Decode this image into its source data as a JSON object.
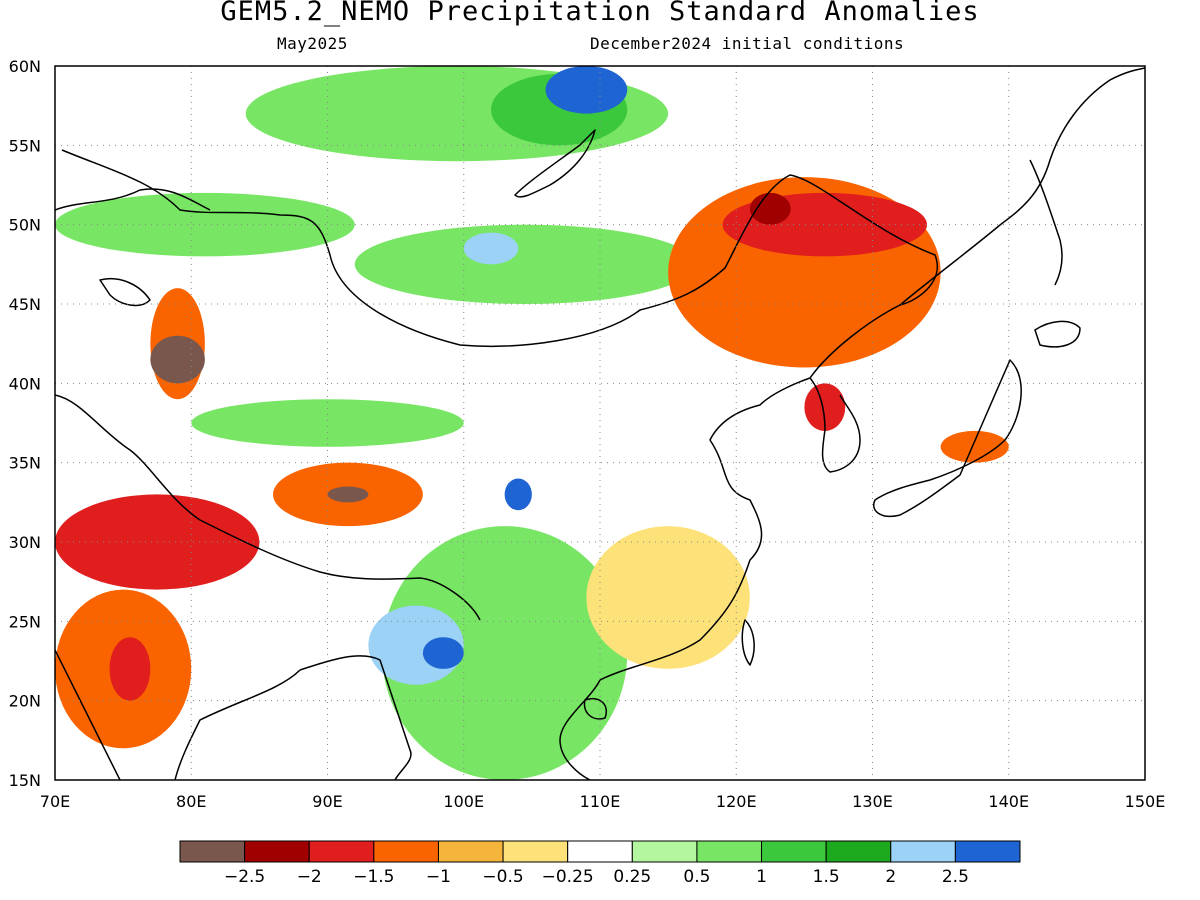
{
  "header": {
    "title": "GEM5.2_NEMO Precipitation Standard Anomalies",
    "left_subtitle": "May2025",
    "right_subtitle": "December2024 initial conditions"
  },
  "axes": {
    "lon_ticks": [
      "70E",
      "80E",
      "90E",
      "100E",
      "110E",
      "120E",
      "130E",
      "140E",
      "150E"
    ],
    "lat_ticks": [
      "15N",
      "20N",
      "25N",
      "30N",
      "35N",
      "40N",
      "45N",
      "50N",
      "55N",
      "60N"
    ],
    "lon_range": [
      70,
      150
    ],
    "lat_range": [
      15,
      60
    ],
    "grid": "dotted"
  },
  "colorbar": {
    "colors": [
      "#7a574d",
      "#a00000",
      "#e01e1e",
      "#fa6400",
      "#f5b53c",
      "#fde27a",
      "#ffffff",
      "#b4f5a0",
      "#78e664",
      "#3cc83c",
      "#1eaa1e",
      "#9bd2f5",
      "#1e64d2"
    ],
    "labels": [
      "-2.5",
      "-2",
      "-1.5",
      "-1",
      "-0.5",
      "-0.25",
      "0.25",
      "0.5",
      "1",
      "1.5",
      "2",
      "2.5"
    ]
  },
  "regions": [
    {
      "name": "siberia-wet-north",
      "level": 2,
      "lon": [
        84,
        115
      ],
      "lat": [
        54,
        60
      ]
    },
    {
      "name": "baikal-wet",
      "level": 3,
      "lon": [
        102,
        112
      ],
      "lat": [
        55,
        59.5
      ]
    },
    {
      "name": "far-north-blue",
      "level": 6,
      "lon": [
        106,
        112
      ],
      "lat": [
        57,
        60
      ]
    },
    {
      "name": "kazakh-wet",
      "level": 2,
      "lon": [
        70,
        92
      ],
      "lat": [
        48,
        52
      ]
    },
    {
      "name": "mongolia-wet",
      "level": 2,
      "lon": [
        92,
        117
      ],
      "lat": [
        45,
        50
      ]
    },
    {
      "name": "mongolia-blue",
      "level": 5,
      "lon": [
        100,
        104
      ],
      "lat": [
        47.5,
        49.5
      ]
    },
    {
      "name": "manchuria-dry",
      "level": -3,
      "lon": [
        115,
        135
      ],
      "lat": [
        41,
        53
      ]
    },
    {
      "name": "manchuria-core-dry",
      "level": -4,
      "lon": [
        119,
        134
      ],
      "lat": [
        48,
        52
      ]
    },
    {
      "name": "manchuria-darkest",
      "level": -5,
      "lon": [
        121,
        124
      ],
      "lat": [
        50,
        52
      ]
    },
    {
      "name": "xinjiang-dry",
      "level": -3,
      "lon": [
        77,
        81
      ],
      "lat": [
        39,
        46
      ]
    },
    {
      "name": "xinjiang-darkest",
      "level": -6,
      "lon": [
        77,
        81
      ],
      "lat": [
        40,
        43
      ]
    },
    {
      "name": "tarim-wet",
      "level": 2,
      "lon": [
        80,
        100
      ],
      "lat": [
        36,
        39
      ]
    },
    {
      "name": "tibet-dry",
      "level": -3,
      "lon": [
        86,
        97
      ],
      "lat": [
        31,
        35
      ]
    },
    {
      "name": "tibet-darkest",
      "level": -6,
      "lon": [
        90,
        93
      ],
      "lat": [
        32.5,
        33.5
      ]
    },
    {
      "name": "himalaya-dry",
      "level": -4,
      "lon": [
        70,
        85
      ],
      "lat": [
        27,
        33
      ]
    },
    {
      "name": "india-dry",
      "level": -3,
      "lon": [
        70,
        80
      ],
      "lat": [
        17,
        27
      ]
    },
    {
      "name": "india-core-dry",
      "level": -4,
      "lon": [
        74,
        77
      ],
      "lat": [
        20,
        24
      ]
    },
    {
      "name": "indochina-wet",
      "level": 2,
      "lon": [
        94,
        112
      ],
      "lat": [
        15,
        31
      ]
    },
    {
      "name": "myanmar-blue",
      "level": 5,
      "lon": [
        93,
        100
      ],
      "lat": [
        21,
        26
      ]
    },
    {
      "name": "myanmar-deep-blue",
      "level": 6,
      "lon": [
        97,
        100
      ],
      "lat": [
        22,
        24
      ]
    },
    {
      "name": "sichuan-blue",
      "level": 6,
      "lon": [
        103,
        105
      ],
      "lat": [
        32,
        34
      ]
    },
    {
      "name": "south-china-dry",
      "level": -1,
      "lon": [
        109,
        121
      ],
      "lat": [
        22,
        31
      ]
    },
    {
      "name": "korea-dry",
      "level": -4,
      "lon": [
        125,
        128
      ],
      "lat": [
        37,
        40
      ]
    },
    {
      "name": "japan-dry",
      "level": -3,
      "lon": [
        135,
        140
      ],
      "lat": [
        35,
        37
      ]
    }
  ]
}
